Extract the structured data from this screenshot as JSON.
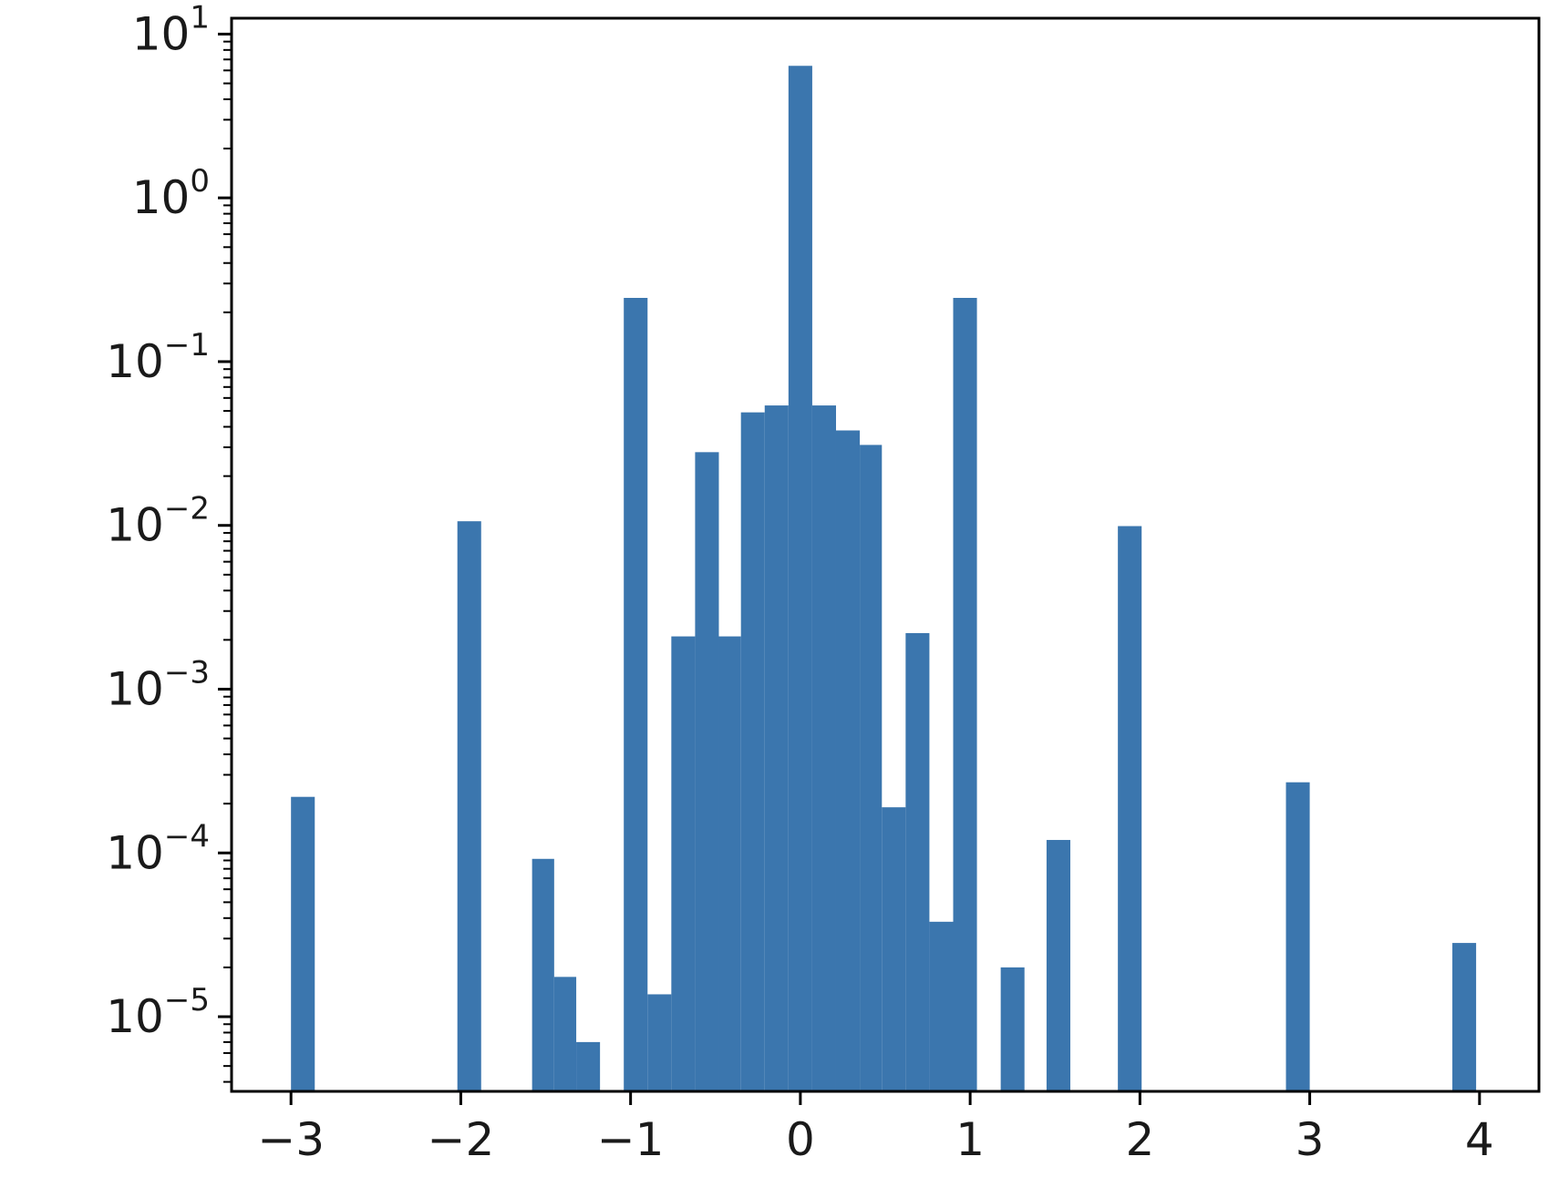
{
  "chart_data": {
    "type": "bar",
    "yscale": "log",
    "title": "",
    "xlabel": "",
    "ylabel": "",
    "xlim": [
      -3.35,
      4.35
    ],
    "ylim": [
      3.5e-06,
      12.5
    ],
    "grid": false,
    "legend": "none",
    "color": "#3b76ae",
    "x_ticks": [
      {
        "value": -3,
        "label": "−3"
      },
      {
        "value": -2,
        "label": "−2"
      },
      {
        "value": -1,
        "label": "−1"
      },
      {
        "value": 0,
        "label": "0"
      },
      {
        "value": 1,
        "label": "1"
      },
      {
        "value": 2,
        "label": "2"
      },
      {
        "value": 3,
        "label": "3"
      },
      {
        "value": 4,
        "label": "4"
      }
    ],
    "y_ticks": [
      {
        "value": 1e-05,
        "base": "10",
        "exp": "−5"
      },
      {
        "value": 0.0001,
        "base": "10",
        "exp": "−4"
      },
      {
        "value": 0.001,
        "base": "10",
        "exp": "−3"
      },
      {
        "value": 0.01,
        "base": "10",
        "exp": "−2"
      },
      {
        "value": 0.1,
        "base": "10",
        "exp": "−1"
      },
      {
        "value": 1,
        "base": "10",
        "exp": "0"
      },
      {
        "value": 10,
        "base": "10",
        "exp": "1"
      }
    ],
    "bars": [
      {
        "x0": -3.0,
        "x1": -2.86,
        "value": 0.00022
      },
      {
        "x0": -2.02,
        "x1": -1.88,
        "value": 0.0106
      },
      {
        "x0": -1.58,
        "x1": -1.45,
        "value": 9.2e-05
      },
      {
        "x0": -1.45,
        "x1": -1.32,
        "value": 1.75e-05
      },
      {
        "x0": -1.32,
        "x1": -1.18,
        "value": 7e-06
      },
      {
        "x0": -1.04,
        "x1": -0.9,
        "value": 0.245
      },
      {
        "x0": -0.9,
        "x1": -0.76,
        "value": 1.37e-05
      },
      {
        "x0": -0.76,
        "x1": -0.62,
        "value": 0.0021
      },
      {
        "x0": -0.62,
        "x1": -0.48,
        "value": 0.028
      },
      {
        "x0": -0.48,
        "x1": -0.35,
        "value": 0.0021
      },
      {
        "x0": -0.35,
        "x1": -0.21,
        "value": 0.049
      },
      {
        "x0": -0.21,
        "x1": -0.07,
        "value": 0.054
      },
      {
        "x0": -0.07,
        "x1": 0.07,
        "value": 6.4
      },
      {
        "x0": 0.07,
        "x1": 0.21,
        "value": 0.054
      },
      {
        "x0": 0.21,
        "x1": 0.35,
        "value": 0.038
      },
      {
        "x0": 0.35,
        "x1": 0.48,
        "value": 0.031
      },
      {
        "x0": 0.48,
        "x1": 0.62,
        "value": 0.00019
      },
      {
        "x0": 0.62,
        "x1": 0.76,
        "value": 0.0022
      },
      {
        "x0": 0.76,
        "x1": 0.9,
        "value": 3.8e-05
      },
      {
        "x0": 0.9,
        "x1": 1.04,
        "value": 0.245
      },
      {
        "x0": 1.18,
        "x1": 1.32,
        "value": 2e-05
      },
      {
        "x0": 1.45,
        "x1": 1.59,
        "value": 0.00012
      },
      {
        "x0": 1.87,
        "x1": 2.01,
        "value": 0.0099
      },
      {
        "x0": 2.86,
        "x1": 3.0,
        "value": 0.00027
      },
      {
        "x0": 3.84,
        "x1": 3.98,
        "value": 2.82e-05
      }
    ]
  }
}
